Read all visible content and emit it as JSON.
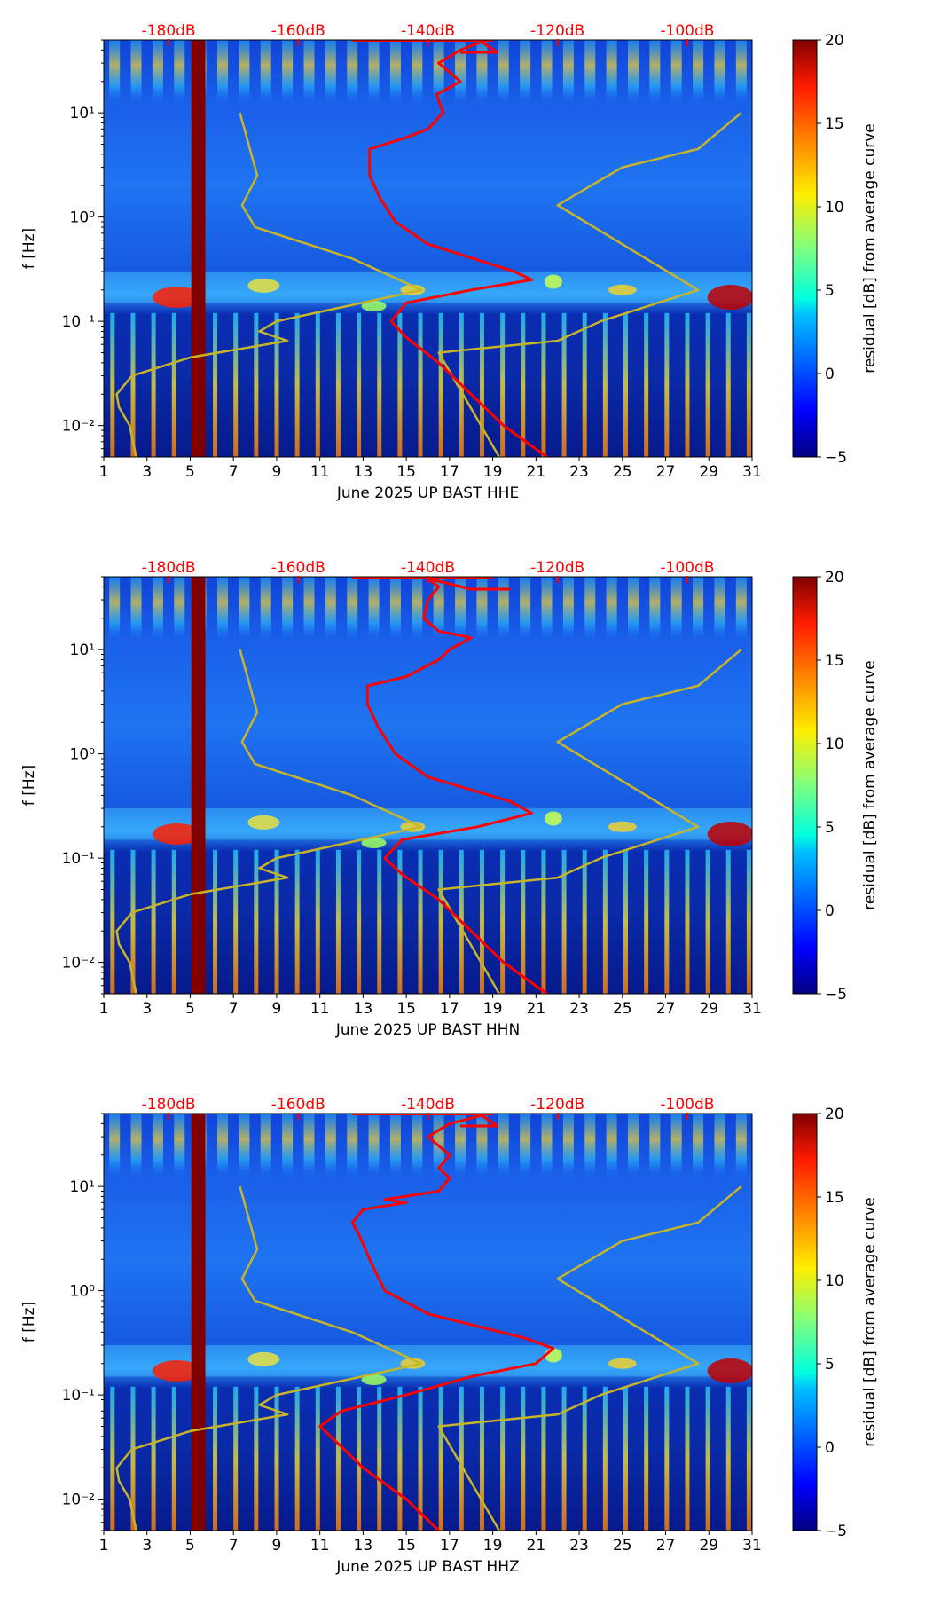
{
  "figure": {
    "y_axis_label": "f [Hz]",
    "colorbar_label": "residual [dB] from average curve",
    "colors": {
      "spectral": "#ff0000",
      "noise_model": "#c8b428",
      "top_tick_text": "#ff0000"
    }
  },
  "chart_data": [
    {
      "type": "heatmap",
      "title": "June 2025 UP BAST  HHE",
      "xlabel": "June 2025 UP BAST  HHE",
      "ylabel": "f [Hz]",
      "x_ticks": [
        "1",
        "3",
        "5",
        "7",
        "9",
        "11",
        "13",
        "15",
        "17",
        "19",
        "21",
        "23",
        "25",
        "27",
        "29",
        "31"
      ],
      "xlim": [
        1,
        31
      ],
      "ylim": [
        0.005,
        50
      ],
      "yscale": "log",
      "y_ticks": [
        {
          "value": 10,
          "label": "10¹"
        },
        {
          "value": 1,
          "label": "10⁰"
        },
        {
          "value": 0.1,
          "label": "10⁻¹"
        },
        {
          "value": 0.01,
          "label": "10⁻²"
        }
      ],
      "top_ticks": [
        {
          "x": 4,
          "label": "-180dB"
        },
        {
          "x": 10,
          "label": "-160dB"
        },
        {
          "x": 16,
          "label": "-140dB"
        },
        {
          "x": 22,
          "label": "-120dB"
        },
        {
          "x": 28,
          "label": "-100dB"
        }
      ],
      "colorbar": {
        "min": -5,
        "max": 20,
        "ticks": [
          "20",
          "15",
          "10",
          "5",
          "0",
          "−5"
        ],
        "label": "residual [dB] from average curve"
      },
      "data_gap": {
        "from_day": 5.05,
        "to_day": 5.7
      },
      "series": [
        {
          "name": "noise model low",
          "values": [
            [
              2.5,
              0.005
            ],
            [
              2.2,
              0.01
            ],
            [
              1.7,
              0.015
            ],
            [
              1.6,
              0.02
            ],
            [
              2.3,
              0.03
            ],
            [
              5,
              0.045
            ],
            [
              9.5,
              0.065
            ],
            [
              8.2,
              0.08
            ],
            [
              9,
              0.1
            ],
            [
              15.7,
              0.2
            ],
            [
              12.5,
              0.4
            ],
            [
              8,
              0.8
            ],
            [
              7.4,
              1.3
            ],
            [
              8.1,
              2.5
            ],
            [
              7.7,
              5
            ],
            [
              7.3,
              10
            ]
          ]
        },
        {
          "name": "noise model high",
          "values": [
            [
              19.3,
              0.005
            ],
            [
              16.5,
              0.05
            ],
            [
              22,
              0.065
            ],
            [
              24,
              0.1
            ],
            [
              28.5,
              0.2
            ],
            [
              22,
              1.3
            ],
            [
              25,
              3
            ],
            [
              28.5,
              4.5
            ],
            [
              30.5,
              10
            ]
          ]
        },
        {
          "name": "spectral curve",
          "values": [
            [
              21.5,
              0.005
            ],
            [
              19.5,
              0.01
            ],
            [
              18,
              0.02
            ],
            [
              16.5,
              0.04
            ],
            [
              15,
              0.07
            ],
            [
              14.3,
              0.1
            ],
            [
              15,
              0.15
            ],
            [
              18,
              0.2
            ],
            [
              20.8,
              0.25
            ],
            [
              20,
              0.3
            ],
            [
              16,
              0.55
            ],
            [
              14.5,
              0.9
            ],
            [
              13.8,
              1.5
            ],
            [
              13.3,
              2.5
            ],
            [
              13.3,
              4.5
            ],
            [
              15,
              5.8
            ],
            [
              16,
              7
            ],
            [
              16.7,
              10
            ],
            [
              16.4,
              15
            ],
            [
              17.5,
              20
            ],
            [
              16.5,
              30
            ],
            [
              17.5,
              40
            ],
            [
              18.5,
              48
            ],
            [
              19.2,
              38
            ],
            [
              17.5,
              38
            ]
          ]
        }
      ]
    },
    {
      "type": "heatmap",
      "title": "June 2025 UP BAST  HHN",
      "xlabel": "June 2025 UP BAST  HHN",
      "ylabel": "f [Hz]",
      "x_ticks": [
        "1",
        "3",
        "5",
        "7",
        "9",
        "11",
        "13",
        "15",
        "17",
        "19",
        "21",
        "23",
        "25",
        "27",
        "29",
        "31"
      ],
      "xlim": [
        1,
        31
      ],
      "ylim": [
        0.005,
        50
      ],
      "yscale": "log",
      "y_ticks": [
        {
          "value": 10,
          "label": "10¹"
        },
        {
          "value": 1,
          "label": "10⁰"
        },
        {
          "value": 0.1,
          "label": "10⁻¹"
        },
        {
          "value": 0.01,
          "label": "10⁻²"
        }
      ],
      "top_ticks": [
        {
          "x": 4,
          "label": "-180dB"
        },
        {
          "x": 10,
          "label": "-160dB"
        },
        {
          "x": 16,
          "label": "-140dB"
        },
        {
          "x": 22,
          "label": "-120dB"
        },
        {
          "x": 28,
          "label": "-100dB"
        }
      ],
      "colorbar": {
        "min": -5,
        "max": 20,
        "ticks": [
          "20",
          "15",
          "10",
          "5",
          "0",
          "−5"
        ],
        "label": "residual [dB] from average curve"
      },
      "data_gap": {
        "from_day": 5.05,
        "to_day": 5.7
      },
      "series": [
        {
          "name": "noise model low",
          "values": [
            [
              2.5,
              0.005
            ],
            [
              2.2,
              0.01
            ],
            [
              1.7,
              0.015
            ],
            [
              1.6,
              0.02
            ],
            [
              2.3,
              0.03
            ],
            [
              5,
              0.045
            ],
            [
              9.5,
              0.065
            ],
            [
              8.2,
              0.08
            ],
            [
              9,
              0.1
            ],
            [
              15.7,
              0.2
            ],
            [
              12.5,
              0.4
            ],
            [
              8,
              0.8
            ],
            [
              7.4,
              1.3
            ],
            [
              8.1,
              2.5
            ],
            [
              7.7,
              5
            ],
            [
              7.3,
              10
            ]
          ]
        },
        {
          "name": "noise model high",
          "values": [
            [
              19.3,
              0.005
            ],
            [
              16.5,
              0.05
            ],
            [
              22,
              0.065
            ],
            [
              24,
              0.1
            ],
            [
              28.5,
              0.2
            ],
            [
              22,
              1.3
            ],
            [
              25,
              3
            ],
            [
              28.5,
              4.5
            ],
            [
              30.5,
              10
            ]
          ]
        },
        {
          "name": "spectral curve",
          "values": [
            [
              21.5,
              0.005
            ],
            [
              19.5,
              0.01
            ],
            [
              18,
              0.02
            ],
            [
              16.5,
              0.04
            ],
            [
              14.8,
              0.07
            ],
            [
              14,
              0.1
            ],
            [
              14.8,
              0.15
            ],
            [
              18.3,
              0.2
            ],
            [
              20.8,
              0.27
            ],
            [
              19.8,
              0.35
            ],
            [
              16,
              0.6
            ],
            [
              14.5,
              1
            ],
            [
              13.7,
              1.8
            ],
            [
              13.2,
              3
            ],
            [
              13.2,
              4.5
            ],
            [
              15,
              5.5
            ],
            [
              16.5,
              8
            ],
            [
              17,
              10
            ],
            [
              18,
              13
            ],
            [
              16.5,
              15
            ],
            [
              15.8,
              20
            ],
            [
              16,
              30
            ],
            [
              16.5,
              40
            ],
            [
              16,
              48
            ],
            [
              18,
              38
            ],
            [
              19.8,
              38
            ]
          ]
        }
      ]
    },
    {
      "type": "heatmap",
      "title": "June 2025 UP BAST  HHZ",
      "xlabel": "June 2025 UP BAST  HHZ",
      "ylabel": "f [Hz]",
      "x_ticks": [
        "1",
        "3",
        "5",
        "7",
        "9",
        "11",
        "13",
        "15",
        "17",
        "19",
        "21",
        "23",
        "25",
        "27",
        "29",
        "31"
      ],
      "xlim": [
        1,
        31
      ],
      "ylim": [
        0.005,
        50
      ],
      "yscale": "log",
      "y_ticks": [
        {
          "value": 10,
          "label": "10¹"
        },
        {
          "value": 1,
          "label": "10⁰"
        },
        {
          "value": 0.1,
          "label": "10⁻¹"
        },
        {
          "value": 0.01,
          "label": "10⁻²"
        }
      ],
      "top_ticks": [
        {
          "x": 4,
          "label": "-180dB"
        },
        {
          "x": 10,
          "label": "-160dB"
        },
        {
          "x": 16,
          "label": "-140dB"
        },
        {
          "x": 22,
          "label": "-120dB"
        },
        {
          "x": 28,
          "label": "-100dB"
        }
      ],
      "colorbar": {
        "min": -5,
        "max": 20,
        "ticks": [
          "20",
          "15",
          "10",
          "5",
          "0",
          "−5"
        ],
        "label": "residual [dB] from average curve"
      },
      "data_gap": {
        "from_day": 5.05,
        "to_day": 5.7
      },
      "series": [
        {
          "name": "noise model low",
          "values": [
            [
              2.5,
              0.005
            ],
            [
              2.2,
              0.01
            ],
            [
              1.7,
              0.015
            ],
            [
              1.6,
              0.02
            ],
            [
              2.3,
              0.03
            ],
            [
              5,
              0.045
            ],
            [
              9.5,
              0.065
            ],
            [
              8.2,
              0.08
            ],
            [
              9,
              0.1
            ],
            [
              15.7,
              0.2
            ],
            [
              12.5,
              0.4
            ],
            [
              8,
              0.8
            ],
            [
              7.4,
              1.3
            ],
            [
              8.1,
              2.5
            ],
            [
              7.7,
              5
            ],
            [
              7.3,
              10
            ]
          ]
        },
        {
          "name": "noise model high",
          "values": [
            [
              19.3,
              0.005
            ],
            [
              16.5,
              0.05
            ],
            [
              22,
              0.065
            ],
            [
              24,
              0.1
            ],
            [
              28.5,
              0.2
            ],
            [
              22,
              1.3
            ],
            [
              25,
              3
            ],
            [
              28.5,
              4.5
            ],
            [
              30.5,
              10
            ]
          ]
        },
        {
          "name": "spectral curve",
          "values": [
            [
              16.5,
              0.005
            ],
            [
              15,
              0.01
            ],
            [
              13,
              0.02
            ],
            [
              11.5,
              0.04
            ],
            [
              11,
              0.05
            ],
            [
              12,
              0.07
            ],
            [
              15,
              0.1
            ],
            [
              18,
              0.15
            ],
            [
              21,
              0.2
            ],
            [
              21.8,
              0.28
            ],
            [
              20.5,
              0.35
            ],
            [
              16,
              0.6
            ],
            [
              14,
              1
            ],
            [
              13.3,
              2
            ],
            [
              12.8,
              3.5
            ],
            [
              12.5,
              4.5
            ],
            [
              13,
              6
            ],
            [
              15,
              7
            ],
            [
              14,
              7.5
            ],
            [
              16.5,
              9
            ],
            [
              17,
              12
            ],
            [
              16.5,
              15
            ],
            [
              17,
              20
            ],
            [
              16,
              30
            ],
            [
              17,
              40
            ],
            [
              18.5,
              48
            ],
            [
              19.2,
              38
            ],
            [
              17.5,
              38
            ]
          ]
        }
      ]
    }
  ]
}
